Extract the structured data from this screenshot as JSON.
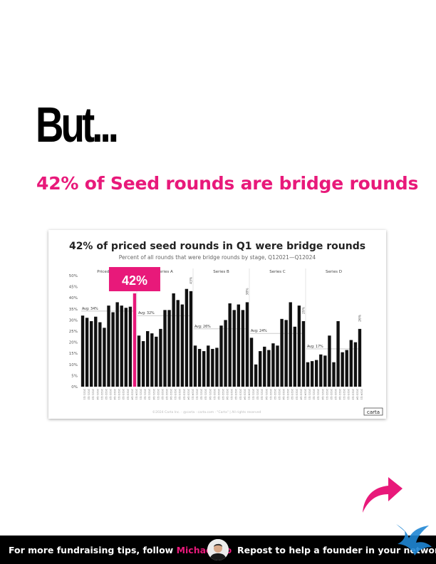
{
  "headline": "But...",
  "subhead": "42% of Seed rounds are bridge rounds",
  "chart_data": {
    "type": "bar",
    "title": "42% of priced seed rounds in Q1 were bridge rounds",
    "subtitle": "Percent of all rounds that were bridge rounds by stage, Q12021—Q12024",
    "y_ticks": [
      "50%",
      "45%",
      "40%",
      "35%",
      "30%",
      "25%",
      "20%",
      "15%",
      "10%",
      "5%",
      "0%"
    ],
    "ylim": [
      0,
      50
    ],
    "categories": [
      "2021 Q1",
      "2021 Q2",
      "2021 Q3",
      "2021 Q4",
      "2022 Q1",
      "2022 Q2",
      "2022 Q3",
      "2022 Q4",
      "2023 Q1",
      "2023 Q2",
      "2023 Q3",
      "2023 Q4",
      "2024 Q1"
    ],
    "series": [
      {
        "name": "Priced Seed",
        "avg_label": "Avg: 34%",
        "avg": 34,
        "values": [
          32,
          31,
          29.5,
          31.5,
          29,
          26.5,
          36.5,
          33.5,
          38,
          36.5,
          35.5,
          36,
          42
        ],
        "last_label": "42%"
      },
      {
        "name": "Series A",
        "avg_label": "Avg: 32%",
        "avg": 32,
        "values": [
          23,
          20.5,
          25,
          24,
          22.5,
          26,
          34.5,
          34.5,
          42,
          39,
          37,
          44,
          43
        ],
        "last_label": "43%"
      },
      {
        "name": "Series B",
        "avg_label": "Avg: 26%",
        "avg": 26,
        "values": [
          18.5,
          17,
          16,
          18.5,
          17,
          17.5,
          27.5,
          30,
          37.5,
          34.5,
          37,
          34.5,
          38
        ],
        "last_label": "38%"
      },
      {
        "name": "Series C",
        "avg_label": "Avg: 24%",
        "avg": 24,
        "values": [
          22,
          10,
          16,
          18,
          16.5,
          19.5,
          18.5,
          30.5,
          30,
          38,
          27,
          36.5,
          29.5
        ],
        "last_label": "29%"
      },
      {
        "name": "Series D",
        "avg_label": "Avg: 17%",
        "avg": 17,
        "values": [
          11,
          11.5,
          12,
          14.5,
          14,
          23,
          11,
          29.5,
          15.5,
          16.5,
          21,
          20,
          26
        ],
        "last_label": "26%"
      }
    ],
    "callout": "42%",
    "copyright": "©2024 Carta Inc. · @carta · carta.com · \"Carta\" | All rights reserved",
    "logo": "carta",
    "highlight_color": "#e8197a",
    "bar_color": "#111111"
  },
  "footer": {
    "left_text": "For more fundraising tips, follow ",
    "name": "Michael Ho",
    "right_text": "Repost to help a founder in your network"
  },
  "colors": {
    "accent": "#e8197a",
    "footer_bg": "#000000"
  }
}
